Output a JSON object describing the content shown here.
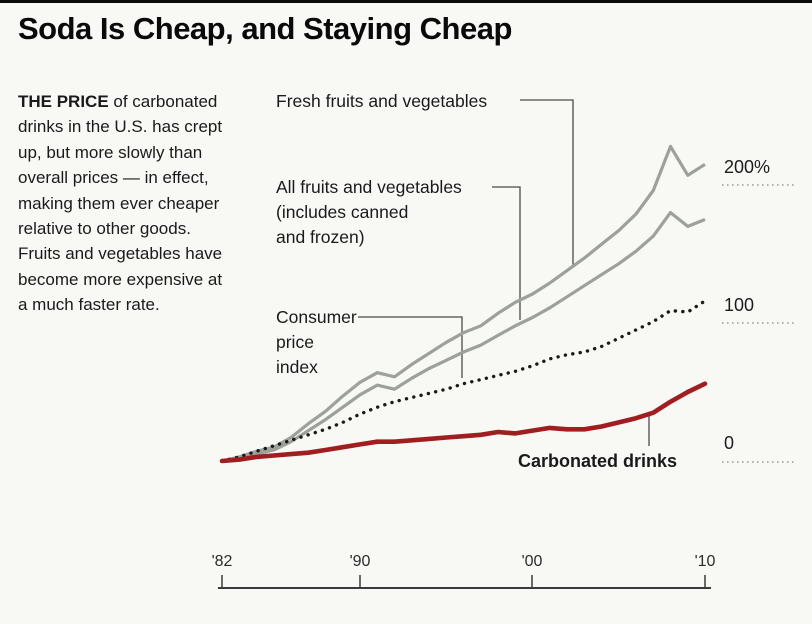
{
  "title": "Soda Is Cheap, and Staying Cheap",
  "lede": {
    "lead_in": "THE PRICE",
    "body": " of carbonated drinks in the U.S. has crept up, but more slowly than overall prices — in effect, making them ever cheaper relative to other goods. Fruits and vegetables have become more expensive at a much faster rate."
  },
  "annotations": {
    "fresh": "Fresh fruits and vegetables",
    "all_line1": "All fruits and vegetables",
    "all_line2": "(includes canned",
    "all_line3": "and frozen)",
    "cpi_line1": "Consumer",
    "cpi_line2": "price",
    "cpi_line3": "index",
    "soda": "Carbonated drinks"
  },
  "axis": {
    "y_labels": [
      "200%",
      "100",
      "0"
    ],
    "x_labels": [
      "'82",
      "'90",
      "'00",
      "'10"
    ]
  },
  "colors": {
    "gray_line": "#9ca199",
    "red_line": "#a01d20",
    "cpi_dots": "#1a1a1a",
    "axis": "#3a3a3a"
  },
  "chart_data": {
    "type": "line",
    "title": "Soda Is Cheap, and Staying Cheap",
    "xlabel": "",
    "ylabel": "",
    "x": [
      1982,
      1983,
      1984,
      1985,
      1986,
      1987,
      1988,
      1989,
      1990,
      1991,
      1992,
      1993,
      1994,
      1995,
      1996,
      1997,
      1998,
      1999,
      2000,
      2001,
      2002,
      2003,
      2004,
      2005,
      2006,
      2007,
      2008,
      2009,
      2010
    ],
    "xlim": [
      1982,
      2010
    ],
    "ylim": [
      0,
      230
    ],
    "grid": "right-side dotted rules at 0, 100, 200%",
    "legend_position": "inline annotations with pointer lines",
    "series": [
      {
        "name": "Fresh fruits and vegetables",
        "color": "#9ca199",
        "style": "solid",
        "values": [
          0,
          3,
          7,
          10,
          17,
          27,
          36,
          47,
          57,
          64,
          61,
          70,
          78,
          86,
          93,
          98,
          107,
          115,
          121,
          129,
          138,
          147,
          157,
          167,
          179,
          196,
          228,
          207,
          215
        ]
      },
      {
        "name": "All fruits and vegetables (includes canned and frozen)",
        "color": "#9ca199",
        "style": "solid",
        "values": [
          0,
          2,
          5,
          8,
          14,
          22,
          30,
          39,
          48,
          55,
          52,
          60,
          67,
          73,
          79,
          84,
          91,
          98,
          104,
          111,
          119,
          127,
          135,
          143,
          152,
          163,
          180,
          170,
          175
        ]
      },
      {
        "name": "Consumer price index",
        "color": "#1a1a1a",
        "style": "dotted",
        "values": [
          0,
          3,
          7,
          11,
          15,
          19,
          23,
          28,
          34,
          39,
          43,
          46,
          49,
          52,
          56,
          59,
          62,
          65,
          69,
          74,
          77,
          79,
          83,
          89,
          95,
          101,
          109,
          108,
          116
        ]
      },
      {
        "name": "Carbonated drinks",
        "color": "#a01d20",
        "style": "solid-thick",
        "values": [
          0,
          1,
          3,
          4,
          5,
          6,
          8,
          10,
          12,
          14,
          14,
          15,
          16,
          17,
          18,
          19,
          21,
          20,
          22,
          24,
          23,
          23,
          25,
          28,
          31,
          35,
          43,
          50,
          56
        ]
      }
    ],
    "y_tick_labels": [
      "200%",
      "100",
      "0"
    ],
    "x_tick_labels": [
      "'82",
      "'90",
      "'00",
      "'10"
    ],
    "x_tick_years": [
      1982,
      1990,
      2000,
      2010
    ]
  }
}
